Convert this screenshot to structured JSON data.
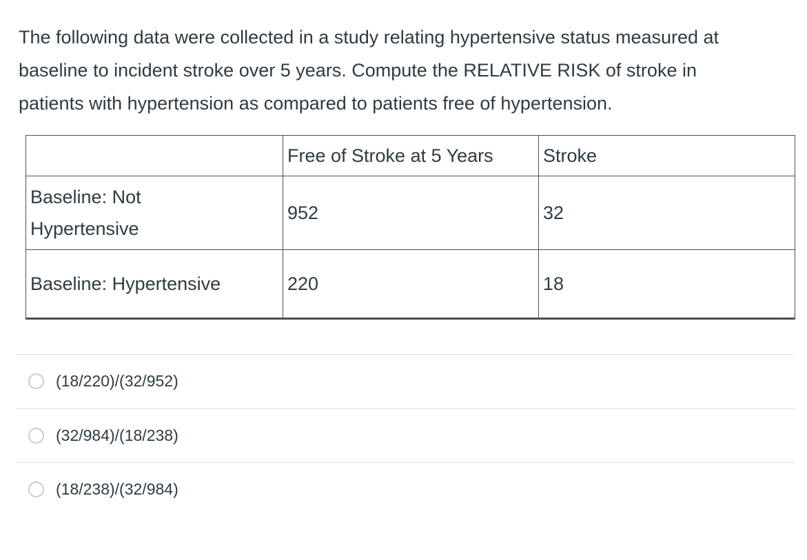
{
  "question": {
    "text": "The following data were collected in a study relating hypertensive status measured at baseline to incident stroke over 5 years. Compute the RELATIVE RISK of stroke in patients with hypertension as compared to patients free of hypertension."
  },
  "table": {
    "headers": [
      "",
      "Free of Stroke at 5 Years",
      "Stroke"
    ],
    "rows": [
      {
        "label": "Baseline: Not Hypertensive",
        "free_of_stroke": "952",
        "stroke": "32"
      },
      {
        "label": "Baseline: Hypertensive",
        "free_of_stroke": "220",
        "stroke": "18"
      }
    ]
  },
  "options": [
    {
      "label": "(18/220)/(32/952)"
    },
    {
      "label": "(32/984)/(18/238)"
    },
    {
      "label": "(18/238)/(32/984)"
    }
  ],
  "colors": {
    "text": "#2d3b45",
    "table_border": "#4a4e52",
    "divider": "#dee1e3",
    "radio_border": "#c7cdd1"
  }
}
